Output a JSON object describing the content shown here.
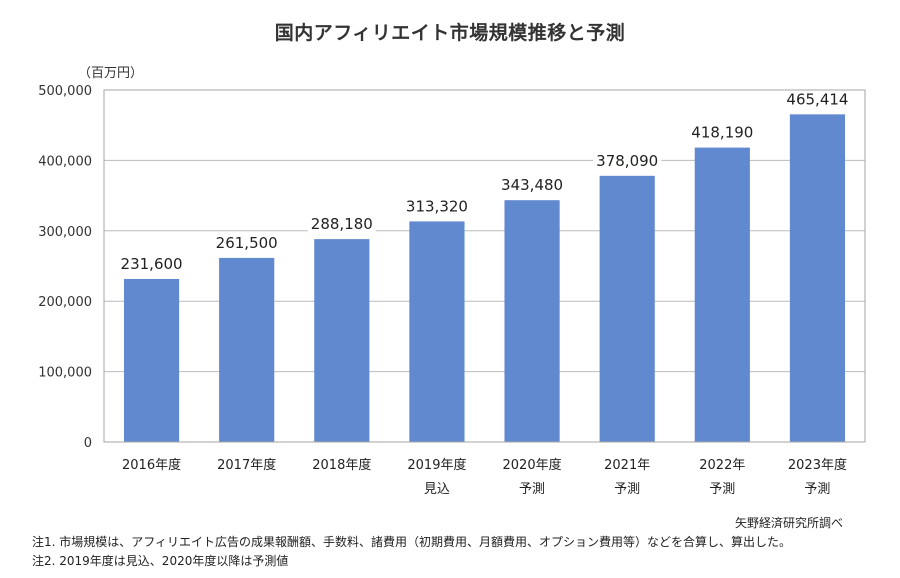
{
  "chart_data": {
    "type": "bar",
    "title": "国内アフィリエイト市場規模推移と予測",
    "ylabel": "（百万円）",
    "xlabel": "",
    "ylim": [
      0,
      500000
    ],
    "yticks": [
      0,
      100000,
      200000,
      300000,
      400000,
      500000
    ],
    "ytick_labels": [
      "0",
      "100,000",
      "200,000",
      "300,000",
      "400,000",
      "500,000"
    ],
    "grid": true,
    "legend": "none",
    "categories": [
      {
        "line1": "2016年度",
        "line2": ""
      },
      {
        "line1": "2017年度",
        "line2": ""
      },
      {
        "line1": "2018年度",
        "line2": ""
      },
      {
        "line1": "2019年度",
        "line2": "見込"
      },
      {
        "line1": "2020年度",
        "line2": "予測"
      },
      {
        "line1": "2021年",
        "line2": "予測"
      },
      {
        "line1": "2022年",
        "line2": "予測"
      },
      {
        "line1": "2023年度",
        "line2": "予測"
      }
    ],
    "values": [
      231600,
      261500,
      288180,
      313320,
      343480,
      378090,
      418190,
      465414
    ],
    "data_labels": [
      "231,600",
      "261,500",
      "288,180",
      "313,320",
      "343,480",
      "378,090",
      "418,190",
      "465,414"
    ],
    "bar_color": "#6189CF",
    "grid_color": "#BBBBBB"
  },
  "source": "矢野経済研究所調べ",
  "notes": [
    "注1.  市場規模は、アフィリエイト広告の成果報酬額、手数料、諸費用（初期費用、月額費用、オプション費用等）などを合算し、算出した。",
    "注2.  2019年度は見込、2020年度以降は予測値"
  ]
}
